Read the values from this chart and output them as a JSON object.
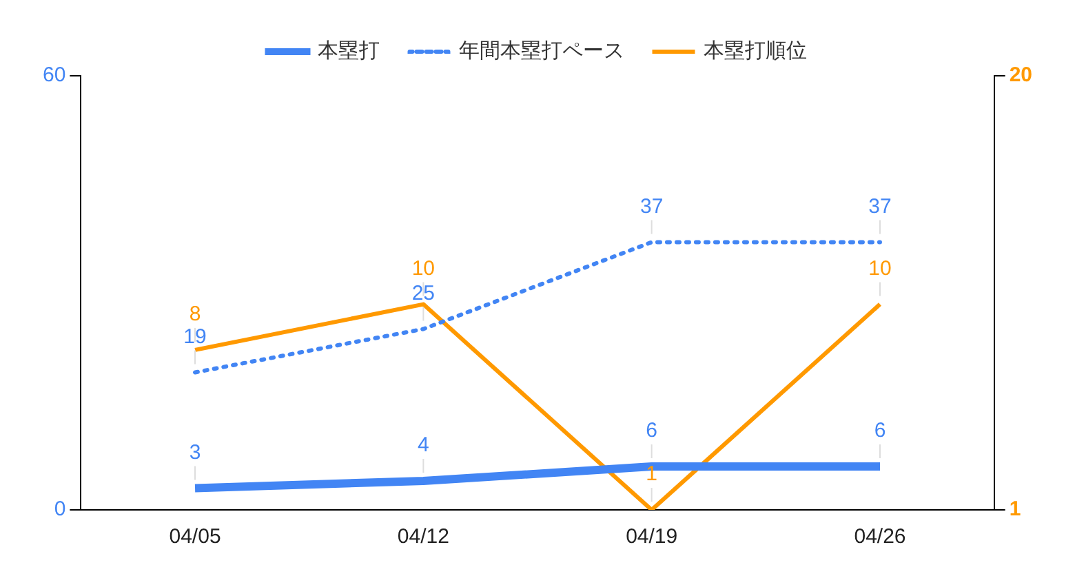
{
  "chart_data": {
    "type": "line",
    "categories": [
      "04/05",
      "04/12",
      "04/19",
      "04/26"
    ],
    "series": [
      {
        "name": "本塁打",
        "color": "#4285f4",
        "values": [
          3,
          4,
          6,
          6
        ]
      },
      {
        "name": "年間本塁打ペース",
        "color": "#4285f4",
        "values": [
          19,
          25,
          37,
          37
        ],
        "line_style": "dotted"
      },
      {
        "name": "本塁打順位",
        "color": "#ff9900",
        "values": [
          8,
          10,
          1,
          10
        ],
        "axis": "y2"
      }
    ],
    "ylim": [
      0,
      60
    ],
    "yticks": [
      0,
      60
    ],
    "y2lim": [
      1,
      20
    ],
    "y2ticks": [
      1,
      20
    ],
    "legend": "top",
    "grid": false,
    "marker": "none",
    "data_labels": true
  }
}
